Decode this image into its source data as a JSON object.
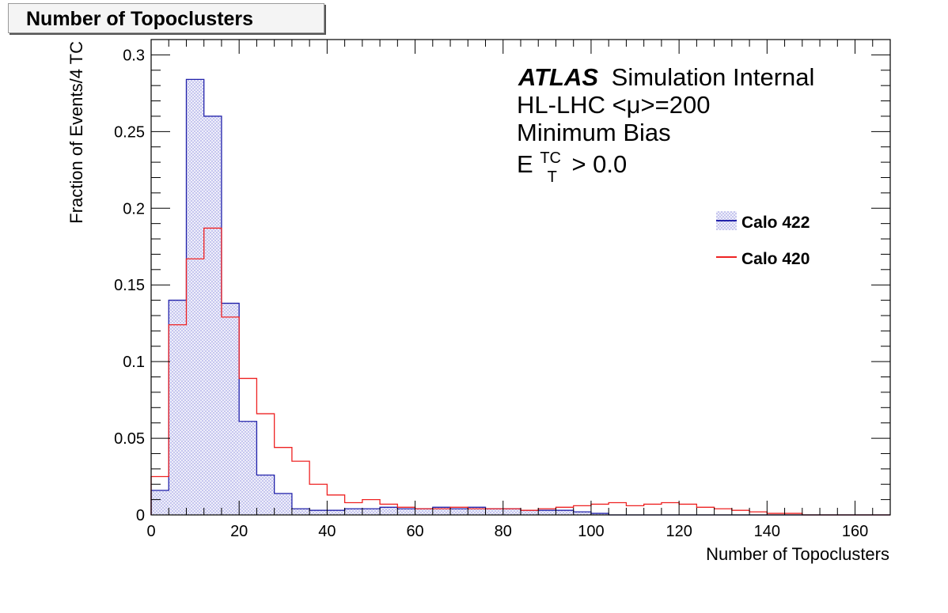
{
  "panel": {
    "title": "Number of Topoclusters"
  },
  "annotations": {
    "atlas": "ATLAS",
    "status": "Simulation Internal",
    "line2": "HL-LHC <μ>=200",
    "line3": "Minimum Bias",
    "line4_base": "E",
    "line4_sup": "TC",
    "line4_sub": "T",
    "line4_rest": " > 0.0"
  },
  "colors": {
    "calo422": "#2222aa",
    "calo420": "#ee2222",
    "fill422": "#dcdcf6"
  },
  "chart_data": {
    "type": "histogram",
    "xlabel": "Number of Topoclusters",
    "ylabel": "Fraction of Events/4 TC",
    "xlim": [
      0,
      168
    ],
    "ylim": [
      0,
      0.31
    ],
    "bin_width": 4,
    "x_ticks": [
      0,
      20,
      40,
      60,
      80,
      100,
      120,
      140,
      160
    ],
    "y_ticks": [
      0,
      0.05,
      0.1,
      0.15,
      0.2,
      0.25,
      0.3
    ],
    "y_tick_labels": [
      "0",
      "0.05",
      "0.1",
      "0.15",
      "0.2",
      "0.25",
      "0.3"
    ],
    "grid": false,
    "legend_position": "right",
    "bin_edges": [
      0,
      4,
      8,
      12,
      16,
      20,
      24,
      28,
      32,
      36,
      40,
      44,
      48,
      52,
      56,
      60,
      64,
      68,
      72,
      76,
      80,
      84,
      88,
      92,
      96,
      100,
      104,
      108,
      112,
      116,
      120,
      124,
      128,
      132,
      136,
      140,
      144,
      148,
      152,
      156,
      160,
      164,
      168
    ],
    "series": [
      {
        "name": "Calo 422",
        "style": "filled",
        "values": [
          0.016,
          0.14,
          0.284,
          0.26,
          0.138,
          0.061,
          0.026,
          0.014,
          0.004,
          0.003,
          0.003,
          0.004,
          0.004,
          0.005,
          0.004,
          0.004,
          0.005,
          0.004,
          0.005,
          0.004,
          0.004,
          0.003,
          0.003,
          0.003,
          0.002,
          0.001,
          0,
          0,
          0,
          0,
          0,
          0,
          0,
          0,
          0,
          0,
          0,
          0,
          0,
          0,
          0,
          0
        ]
      },
      {
        "name": "Calo 420",
        "style": "line",
        "values": [
          0.025,
          0.124,
          0.167,
          0.187,
          0.129,
          0.089,
          0.066,
          0.044,
          0.035,
          0.02,
          0.013,
          0.008,
          0.01,
          0.007,
          0.005,
          0.004,
          0.004,
          0.005,
          0.004,
          0.004,
          0.004,
          0.003,
          0.004,
          0.005,
          0.006,
          0.007,
          0.008,
          0.006,
          0.007,
          0.008,
          0.007,
          0.005,
          0.004,
          0.003,
          0.002,
          0.001,
          0.001,
          0,
          0,
          0,
          0,
          0
        ]
      }
    ]
  }
}
